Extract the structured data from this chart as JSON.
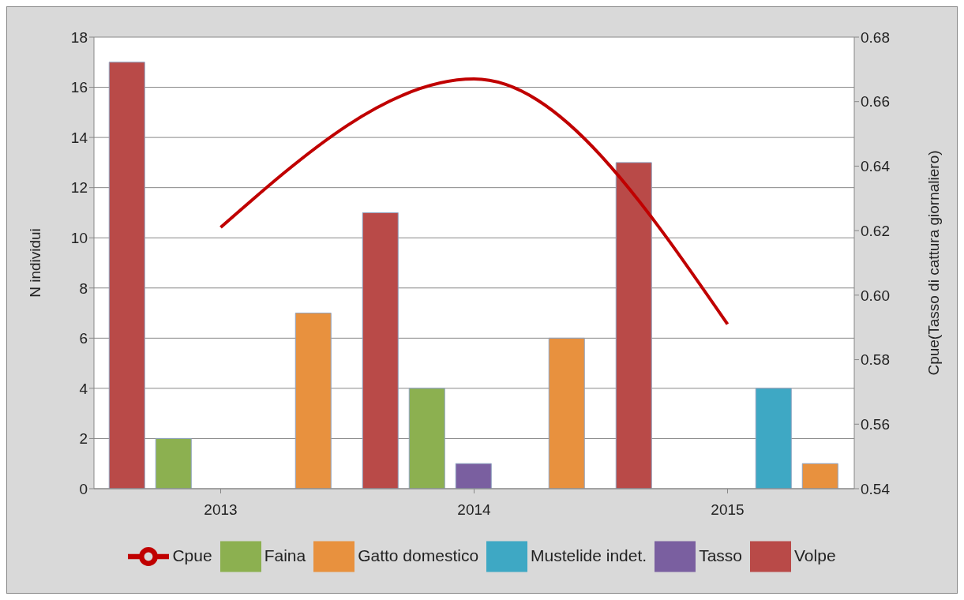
{
  "chart_data": {
    "type": "bar",
    "categories": [
      "2013",
      "2014",
      "2015"
    ],
    "ylabel": "N individui",
    "y2label": "Cpue(Tasso di cattura giornaliero)",
    "ylim": [
      0,
      18
    ],
    "yticks": [
      0,
      2,
      4,
      6,
      8,
      10,
      12,
      14,
      16,
      18
    ],
    "y2lim": [
      0.54,
      0.68
    ],
    "y2ticks": [
      {
        "value": 0.54,
        "label": "0.54"
      },
      {
        "value": 0.56,
        "label": "0.56"
      },
      {
        "value": 0.58,
        "label": "0.58"
      },
      {
        "value": 0.6,
        "label": "0.60"
      },
      {
        "value": 0.62,
        "label": "0.62"
      },
      {
        "value": 0.64,
        "label": "0.64"
      },
      {
        "value": 0.66,
        "label": "0.66"
      },
      {
        "value": 0.68,
        "label": "0.68"
      }
    ],
    "grid": "y",
    "legend": "bottom",
    "series": [
      {
        "name": "Volpe",
        "color": "#b94a48",
        "values": [
          17,
          11,
          13
        ]
      },
      {
        "name": "Faina",
        "color": "#8cb050",
        "values": [
          2,
          4,
          0
        ]
      },
      {
        "name": "Tasso",
        "color": "#7a5fa0",
        "values": [
          0,
          1,
          0
        ]
      },
      {
        "name": "Mustelide indet.",
        "color": "#3ea8c4",
        "values": [
          0,
          0,
          4
        ]
      },
      {
        "name": "Gatto domestico",
        "color": "#e8913e",
        "values": [
          7,
          6,
          1
        ]
      },
      {
        "name": "Cpue",
        "type": "line",
        "axis": "y2",
        "color": "#c00000",
        "marker": "none",
        "line_style": "solid",
        "values": [
          0.621,
          0.667,
          0.591
        ]
      }
    ]
  }
}
